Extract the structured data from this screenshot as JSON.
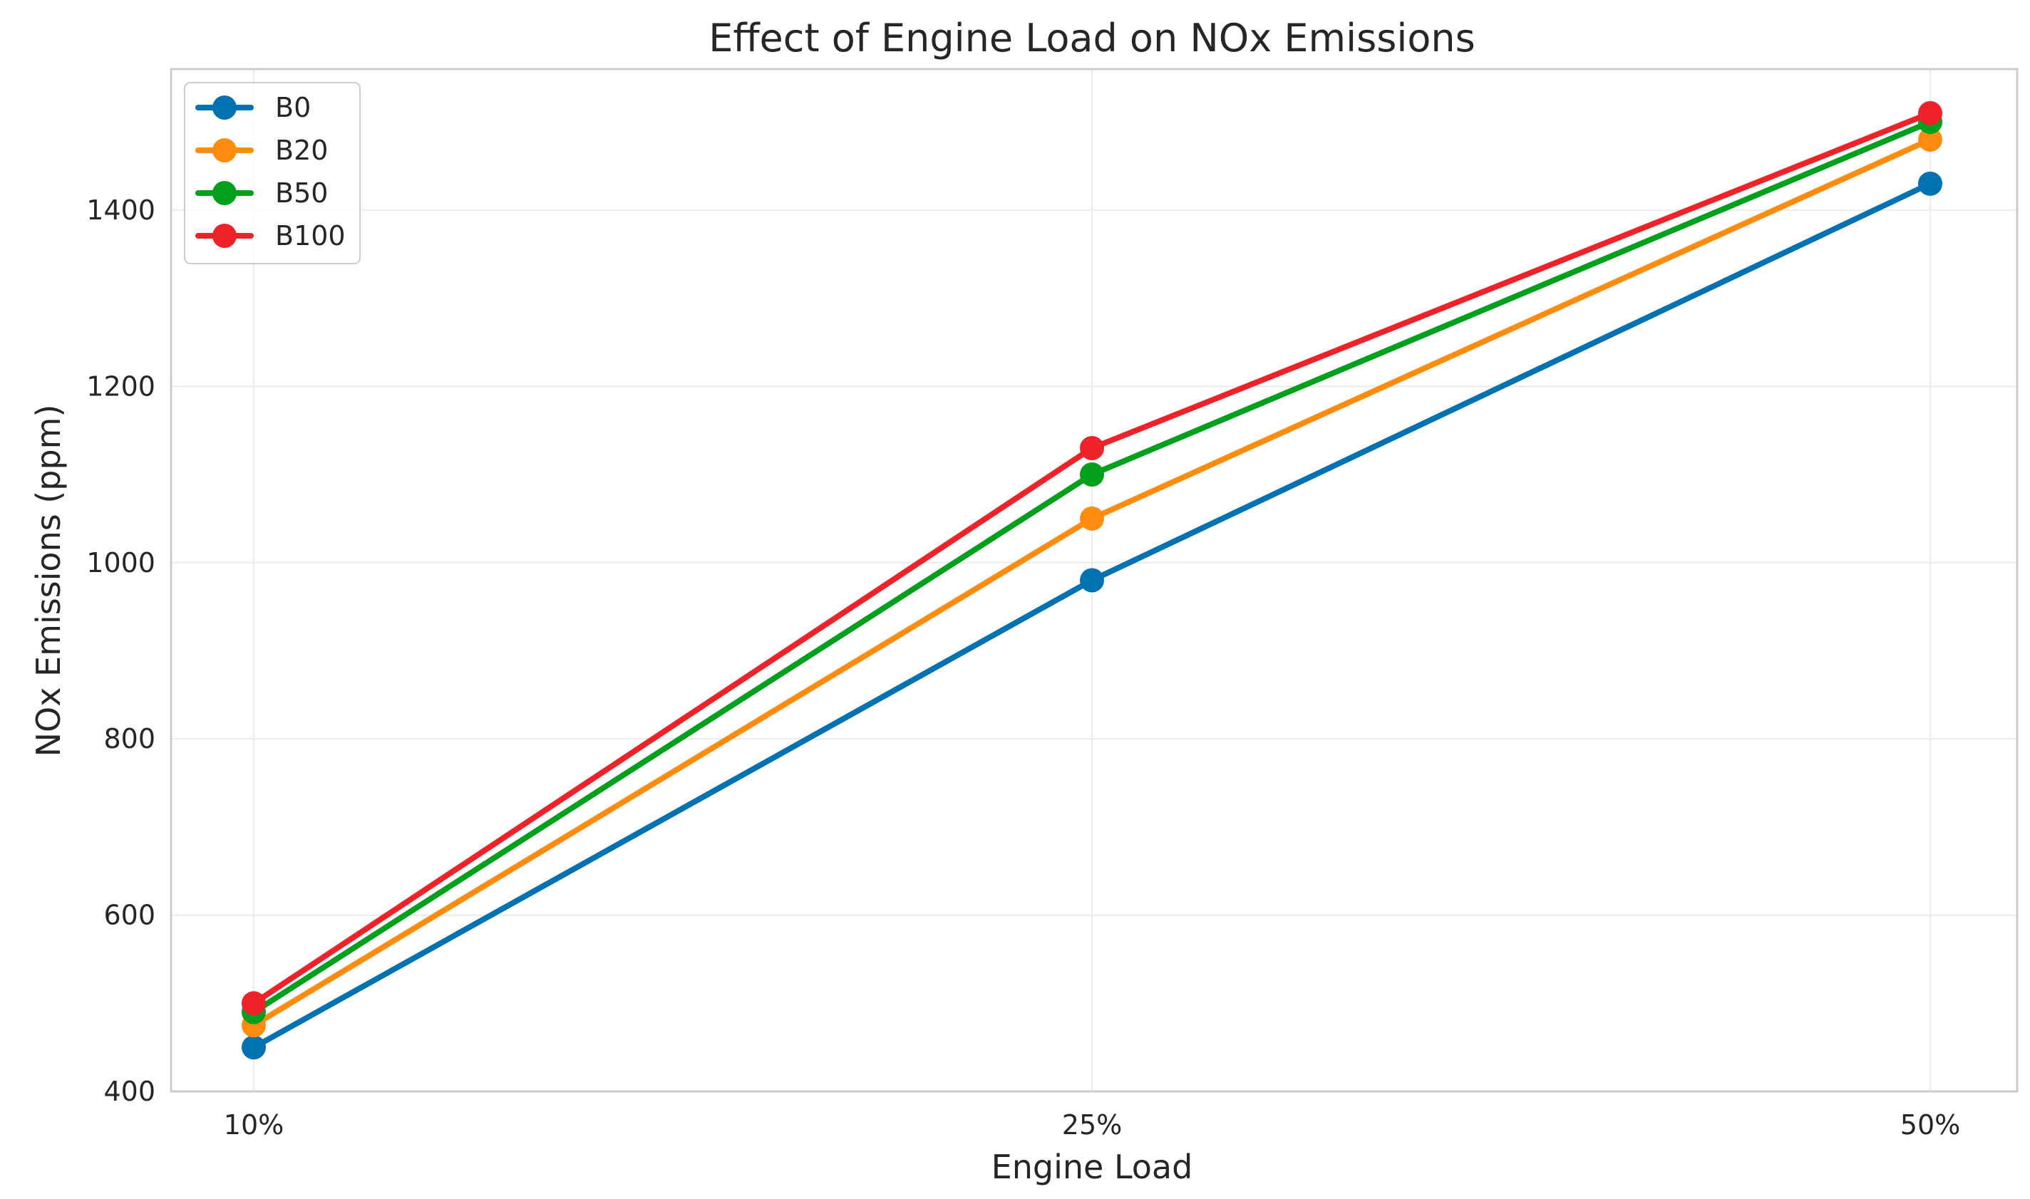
{
  "chart_data": {
    "type": "line",
    "title": "Effect of Engine Load on NOx Emissions",
    "xlabel": "Engine Load",
    "ylabel": "NOx Emissions (ppm)",
    "categories": [
      "10%",
      "25%",
      "50%"
    ],
    "ylim": [
      400,
      1560
    ],
    "yticks": [
      400,
      600,
      800,
      1000,
      1200,
      1400
    ],
    "grid": true,
    "legend_position": "upper-left",
    "series": [
      {
        "name": "B0",
        "color": "#0072b2",
        "values": [
          450,
          980,
          1430
        ]
      },
      {
        "name": "B20",
        "color": "#ff8c0f",
        "values": [
          475,
          1050,
          1480
        ]
      },
      {
        "name": "B50",
        "color": "#00a01c",
        "values": [
          490,
          1100,
          1500
        ]
      },
      {
        "name": "B100",
        "color": "#ee2228",
        "values": [
          500,
          1130,
          1510
        ]
      }
    ]
  }
}
